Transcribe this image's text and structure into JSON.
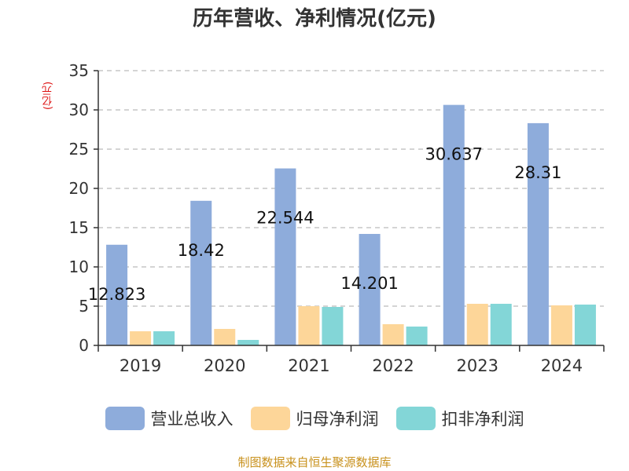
{
  "chart_data": {
    "type": "bar",
    "title": "历年营收、净利情况(亿元)",
    "ylabel": "(亿元)",
    "categories": [
      "2019",
      "2020",
      "2021",
      "2022",
      "2023",
      "2024"
    ],
    "ylim": [
      0,
      35
    ],
    "yticks": [
      0,
      5,
      10,
      15,
      20,
      25,
      30,
      35
    ],
    "grid": true,
    "legend_position": "bottom",
    "series": [
      {
        "name": "营业总收入",
        "color": "#8eacdb",
        "values": [
          12.823,
          18.42,
          22.544,
          14.201,
          30.637,
          28.31
        ],
        "labels": [
          "12.823",
          "18.42",
          "22.544",
          "14.201",
          "30.637",
          "28.31"
        ]
      },
      {
        "name": "归母净利润",
        "color": "#fdd699",
        "values": [
          1.8,
          2.1,
          5.0,
          2.7,
          5.3,
          5.1
        ]
      },
      {
        "name": "扣非净利润",
        "color": "#83d6d7",
        "values": [
          1.8,
          0.7,
          4.9,
          2.4,
          5.3,
          5.2
        ]
      }
    ]
  },
  "source_note": "制图数据来自恒生聚源数据库"
}
